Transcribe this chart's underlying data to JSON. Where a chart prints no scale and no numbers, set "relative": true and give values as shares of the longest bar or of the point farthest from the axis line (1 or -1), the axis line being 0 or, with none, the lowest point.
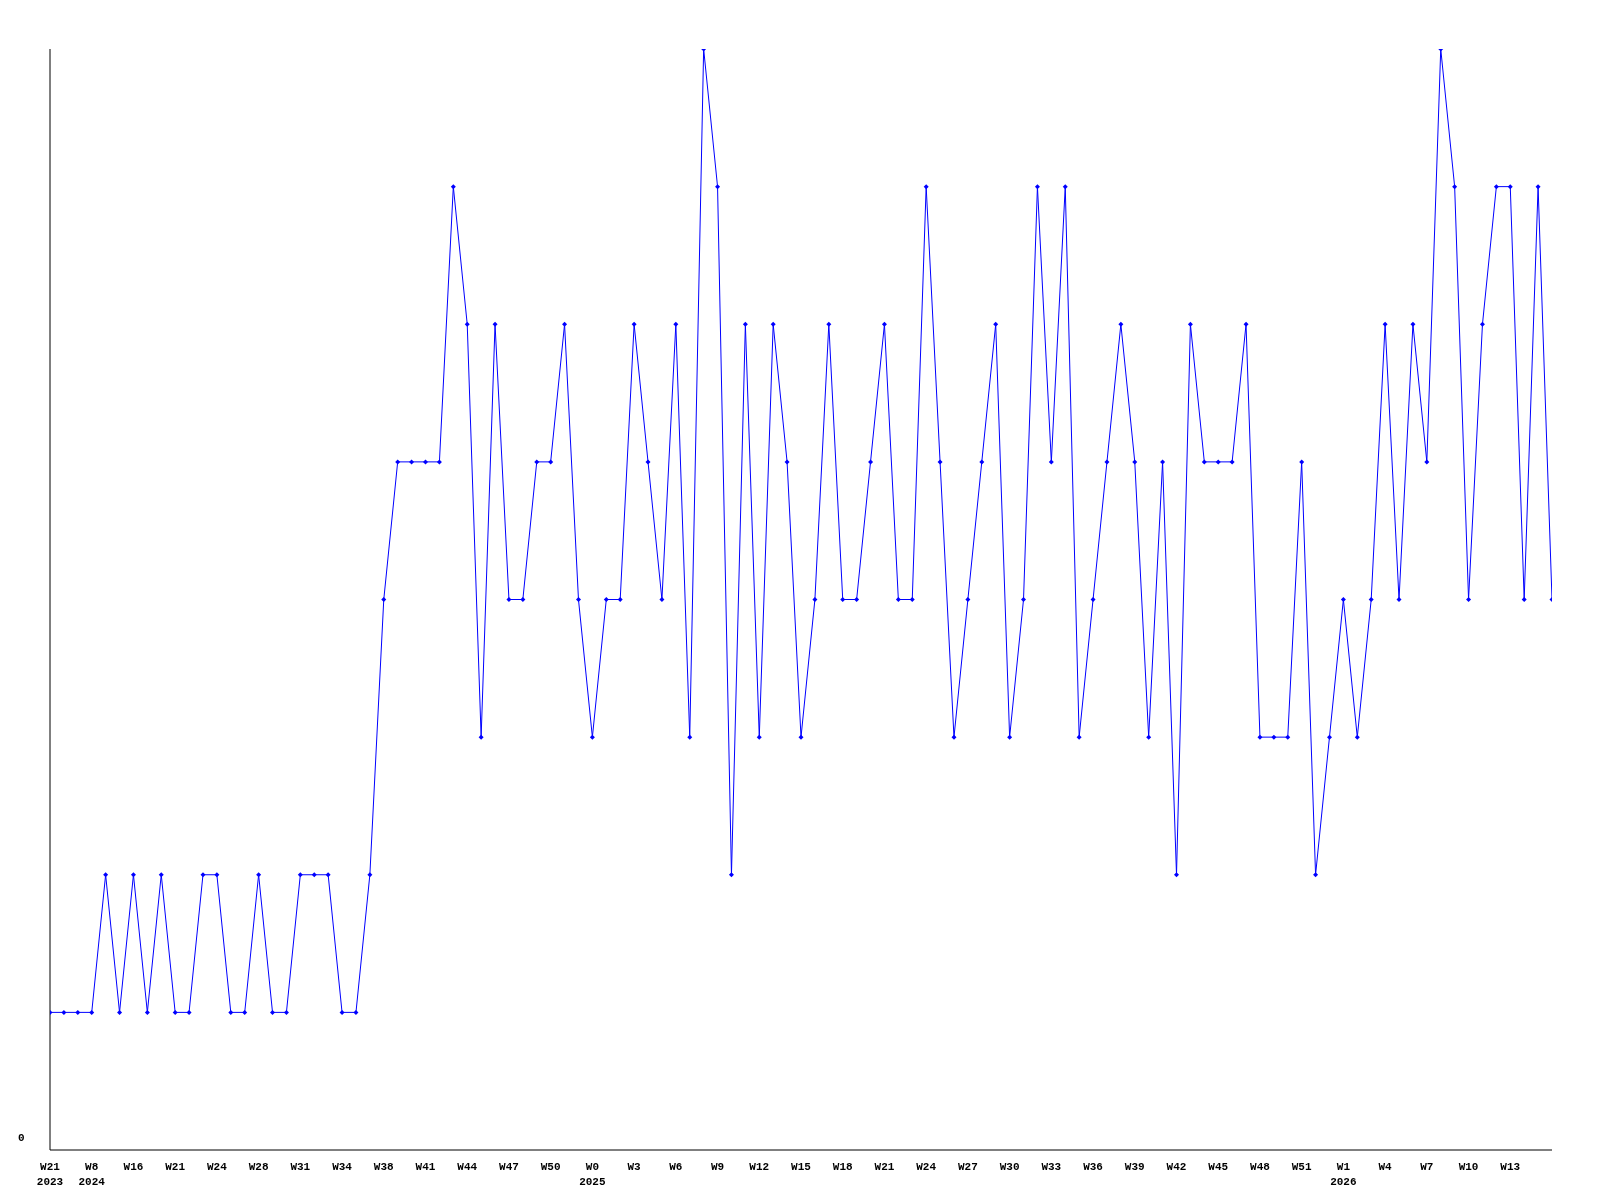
{
  "chart_data": {
    "type": "line",
    "relative": true,
    "marker": "diamond",
    "grid": false,
    "legend": false,
    "annotations": [
      "0"
    ],
    "categories": [
      "W21\n2023",
      null,
      null,
      "W8\n2024",
      null,
      null,
      "W16",
      null,
      null,
      "W21",
      null,
      null,
      "W24",
      null,
      null,
      "W28",
      null,
      null,
      "W31",
      null,
      null,
      "W34",
      null,
      null,
      "W38",
      null,
      null,
      "W41",
      null,
      null,
      "W44",
      null,
      null,
      "W47",
      null,
      null,
      "W50",
      null,
      null,
      "W0\n2025",
      null,
      null,
      "W3",
      null,
      null,
      "W6",
      null,
      null,
      "W9",
      null,
      null,
      "W12",
      null,
      null,
      "W15",
      null,
      null,
      "W18",
      null,
      null,
      "W21",
      null,
      null,
      "W24",
      null,
      null,
      "W27",
      null,
      null,
      "W30",
      null,
      null,
      "W33",
      null,
      null,
      "W36",
      null,
      null,
      "W39",
      null,
      null,
      "W42",
      null,
      null,
      "W45",
      null,
      null,
      "W48",
      null,
      null,
      "W51",
      null,
      null,
      "W1\n2026",
      null,
      null,
      "W4",
      null,
      null,
      "W7",
      null,
      null,
      "W10",
      null,
      null,
      "W13",
      null,
      null,
      null
    ],
    "series": [
      {
        "color": "#0000ff",
        "values": [
          0.125,
          0.125,
          0.125,
          0.125,
          0.25,
          0.125,
          0.25,
          0.125,
          0.25,
          0.125,
          0.125,
          0.25,
          0.25,
          0.125,
          0.125,
          0.25,
          0.125,
          0.125,
          0.25,
          0.25,
          0.25,
          0.125,
          0.125,
          0.25,
          0.5,
          0.625,
          0.625,
          0.625,
          0.625,
          0.875,
          0.75,
          0.375,
          0.75,
          0.5,
          0.5,
          0.625,
          0.625,
          0.75,
          0.5,
          0.375,
          0.5,
          0.5,
          0.75,
          0.625,
          0.5,
          0.75,
          0.375,
          1,
          0.875,
          0.25,
          0.75,
          0.375,
          0.75,
          0.625,
          0.375,
          0.5,
          0.75,
          0.5,
          0.5,
          0.625,
          0.75,
          0.5,
          0.5,
          0.875,
          0.625,
          0.375,
          0.5,
          0.625,
          0.75,
          0.375,
          0.5,
          0.875,
          0.625,
          0.875,
          0.375,
          0.5,
          0.625,
          0.75,
          0.625,
          0.375,
          0.625,
          0.25,
          0.75,
          0.625,
          0.625,
          0.625,
          0.75,
          0.375,
          0.375,
          0.375,
          0.625,
          0.25,
          0.375,
          0.5,
          0.375,
          0.5,
          0.75,
          0.5,
          0.75,
          0.625,
          1,
          0.875,
          0.5,
          0.75,
          0.875,
          0.875,
          0.5,
          0.875,
          0.5
        ]
      }
    ]
  }
}
